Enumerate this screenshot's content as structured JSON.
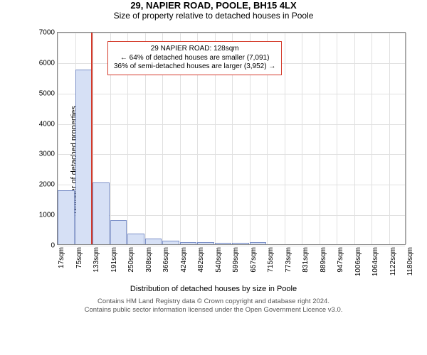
{
  "title": "29, NAPIER ROAD, POOLE, BH15 4LX",
  "subtitle": "Size of property relative to detached houses in Poole",
  "chart": {
    "type": "histogram",
    "ylabel": "Number of detached properties",
    "xlabel": "Distribution of detached houses by size in Poole",
    "ylim": [
      0,
      7000
    ],
    "yticks": [
      0,
      1000,
      2000,
      3000,
      4000,
      5000,
      6000,
      7000
    ],
    "xticks": [
      "17sqm",
      "75sqm",
      "133sqm",
      "191sqm",
      "250sqm",
      "308sqm",
      "366sqm",
      "424sqm",
      "482sqm",
      "540sqm",
      "599sqm",
      "657sqm",
      "715sqm",
      "773sqm",
      "831sqm",
      "889sqm",
      "947sqm",
      "1006sqm",
      "1064sqm",
      "1122sqm",
      "1180sqm"
    ],
    "bars": [
      1780,
      5750,
      2020,
      800,
      360,
      180,
      120,
      80,
      60,
      50,
      50,
      60,
      0,
      0,
      0,
      0,
      0,
      0,
      0,
      0
    ],
    "bar_fill": "#d6e0f5",
    "bar_stroke": "#7a8fc7",
    "grid_color": "#e0e0e0",
    "plot_border": "#888888",
    "background": "#ffffff",
    "font_family": "Arial",
    "title_fontsize": 13,
    "subtitle_fontsize": 12,
    "axis_label_fontsize": 11,
    "tick_fontsize": 10,
    "marker": {
      "position_sqm": 128,
      "color": "#d43a2a",
      "width": 2
    },
    "annotation": {
      "lines": [
        "29 NAPIER ROAD: 128sqm",
        "← 64% of detached houses are smaller (7,091)",
        "36% of semi-detached houses are larger (3,952) →"
      ],
      "border_color": "#d43a2a",
      "background": "#ffffff",
      "fontsize": 10
    }
  },
  "footer": {
    "line1": "Contains HM Land Registry data © Crown copyright and database right 2024.",
    "line2": "Contains public sector information licensed under the Open Government Licence v3.0."
  }
}
